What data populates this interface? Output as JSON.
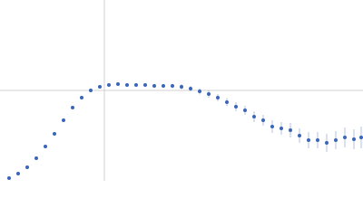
{
  "chart_data": {
    "type": "scatter",
    "xlim": [
      -1.15,
      2.85
    ],
    "ylim": [
      -1,
      1
    ],
    "xticks": [
      0
    ],
    "yticks": [
      0
    ],
    "grid": true,
    "series": [
      {
        "color": "#3a66b8",
        "x": [
          -1.05,
          -0.95,
          -0.85,
          -0.75,
          -0.65,
          -0.55,
          -0.45,
          -0.35,
          -0.25,
          -0.15,
          -0.05,
          0.05,
          0.15,
          0.25,
          0.35,
          0.45,
          0.55,
          0.65,
          0.75,
          0.85,
          0.95,
          1.05,
          1.15,
          1.25,
          1.35,
          1.45,
          1.55,
          1.65,
          1.75,
          1.85,
          1.95,
          2.05,
          2.15,
          2.25,
          2.35,
          2.45,
          2.55,
          2.65,
          2.75,
          2.83
        ],
        "values": [
          -0.97,
          -0.92,
          -0.85,
          -0.75,
          -0.62,
          -0.48,
          -0.33,
          -0.19,
          -0.08,
          0,
          0.04,
          0.06,
          0.07,
          0.06,
          0.06,
          0.06,
          0.05,
          0.05,
          0.05,
          0.04,
          0.02,
          -0.01,
          -0.04,
          -0.08,
          -0.13,
          -0.18,
          -0.22,
          -0.29,
          -0.33,
          -0.4,
          -0.42,
          -0.44,
          -0.5,
          -0.55,
          -0.55,
          -0.58,
          -0.55,
          -0.52,
          -0.54,
          -0.52
        ],
        "errors": [
          0.005,
          0.005,
          0.005,
          0.005,
          0.005,
          0.005,
          0.005,
          0.005,
          0.005,
          0.005,
          0.01,
          0.01,
          0.01,
          0.01,
          0.015,
          0.015,
          0.02,
          0.02,
          0.025,
          0.03,
          0.03,
          0.035,
          0.04,
          0.04,
          0.045,
          0.05,
          0.05,
          0.06,
          0.06,
          0.07,
          0.07,
          0.08,
          0.08,
          0.09,
          0.09,
          0.1,
          0.1,
          0.11,
          0.11,
          0.12
        ]
      }
    ]
  }
}
